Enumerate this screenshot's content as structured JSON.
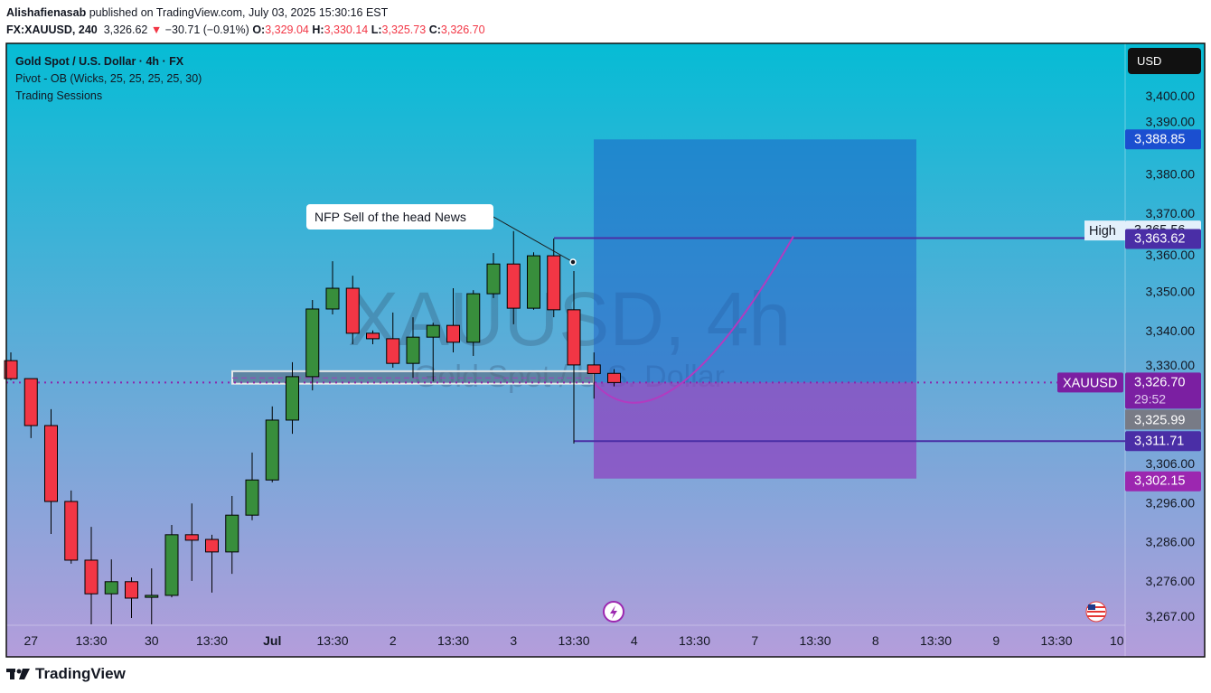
{
  "header": {
    "author": "Alishafienasab",
    "published": "published on TradingView.com, July 03, 2025 15:30:16 EST",
    "symbol": "FX:XAUUSD, 240",
    "last": "3,326.62",
    "change": "−30.71 (−0.91%)",
    "o_label": "O:",
    "o": "3,329.04",
    "h_label": "H:",
    "h": "3,330.14",
    "l_label": "L:",
    "l": "3,325.73",
    "c_label": "C:",
    "c": "3,326.70",
    "down_icon": "triangle-down-icon"
  },
  "legend": {
    "title": "Gold Spot / U.S. Dollar · 4h · FX",
    "indicator1": "Pivot - OB (Wicks, 25, 25, 25, 25, 30)",
    "indicator2": "Trading Sessions"
  },
  "watermark": {
    "line1": "XAUUSD, 4h",
    "line2": "Gold Spot / U.S. Dollar"
  },
  "currency_button": "USD",
  "annotation": "NFP Sell of the head News",
  "colors": {
    "up": "#388e3c",
    "down": "#f23645",
    "bg_top": "#06bcd5",
    "bg_bottom": "#b49ddb",
    "target": "#1e63c8",
    "stop": "#8e44c0",
    "level_line": "#4a2ea6",
    "curve": "#b23bc0"
  },
  "chart_data": {
    "type": "candlestick",
    "ylim": [
      3265,
      3408
    ],
    "y_ticks": [
      "3,400.00",
      "3,390.00",
      "3,380.00",
      "3,370.00",
      "3,360.00",
      "3,350.00",
      "3,340.00",
      "3,330.00",
      "3,306.00",
      "3,296.00",
      "3,286.00",
      "3,276.00",
      "3,267.00"
    ],
    "y_tick_values": [
      3400,
      3390,
      3380,
      3370,
      3360,
      3350,
      3340,
      3330,
      3306,
      3296,
      3286,
      3276,
      3267
    ],
    "x_ticks": [
      "27",
      "13:30",
      "30",
      "13:30",
      "Jul",
      "13:30",
      "2",
      "13:30",
      "3",
      "13:30",
      "4",
      "13:30",
      "7",
      "13:30",
      "8",
      "13:30",
      "9",
      "13:30",
      "10"
    ],
    "x_ticks_bold": [
      "Jul"
    ],
    "candles": [
      [
        3332.3,
        3334.4,
        3327.3,
        3327.7
      ],
      [
        3327.7,
        3327.7,
        3312.5,
        3315.7
      ],
      [
        3315.7,
        3319.9,
        3288.0,
        3296.3
      ],
      [
        3296.3,
        3299.1,
        3280.4,
        3281.3
      ],
      [
        3281.3,
        3289.8,
        3264.9,
        3272.7
      ],
      [
        3272.7,
        3281.5,
        3264.9,
        3275.8
      ],
      [
        3275.8,
        3276.9,
        3266.5,
        3271.6
      ],
      [
        3271.8,
        3279.2,
        3264.9,
        3272.3
      ],
      [
        3272.3,
        3290.3,
        3271.8,
        3287.8
      ],
      [
        3287.8,
        3295.8,
        3276.0,
        3286.4
      ],
      [
        3286.6,
        3287.8,
        3273.0,
        3283.4
      ],
      [
        3283.4,
        3297.7,
        3277.8,
        3292.8
      ],
      [
        3292.8,
        3308.8,
        3291.5,
        3301.8
      ],
      [
        3301.8,
        3320.6,
        3301.2,
        3317.1
      ],
      [
        3317.1,
        3331.9,
        3313.6,
        3328.2
      ],
      [
        3328.2,
        3347.8,
        3324.7,
        3345.5
      ],
      [
        3345.5,
        3357.7,
        3344.1,
        3350.8
      ],
      [
        3350.8,
        3354.0,
        3336.5,
        3339.3
      ],
      [
        3339.3,
        3340.0,
        3336.5,
        3337.9
      ],
      [
        3337.9,
        3344.6,
        3330.5,
        3331.6
      ],
      [
        3331.6,
        3343.4,
        3327.9,
        3338.3
      ],
      [
        3338.3,
        3342.0,
        3327.0,
        3341.3
      ],
      [
        3341.3,
        3350.8,
        3334.4,
        3337.0
      ],
      [
        3337.0,
        3350.3,
        3333.5,
        3349.4
      ],
      [
        3349.4,
        3359.8,
        3348.3,
        3357.0
      ],
      [
        3357.0,
        3365.4,
        3341.6,
        3345.7
      ],
      [
        3345.7,
        3360.0,
        3345.3,
        3359.1
      ],
      [
        3359.1,
        3363.5,
        3343.4,
        3345.3
      ],
      [
        3345.3,
        3355.2,
        3311.1,
        3331.2
      ],
      [
        3331.2,
        3334.4,
        3322.6,
        3329.0
      ],
      [
        3329.04,
        3330.14,
        3325.73,
        3326.7
      ]
    ],
    "ob_zone": [
      3326.4,
      3329.6
    ],
    "position": {
      "entry": 3326.7,
      "target": 3388.85,
      "stop": 3302.15
    },
    "levels": {
      "upper": 3363.62,
      "lower": 3311.71
    },
    "high_value": 3365.56
  },
  "price_labels": {
    "target": "3,388.85",
    "high_label": "High",
    "high": "3,365.56",
    "upper_level": "3,363.62",
    "symbol_tag": "XAUUSD",
    "current": "3,326.70",
    "countdown": "29:52",
    "gray": "3,325.99",
    "lower_level": "3,311.71",
    "stop": "3,302.15"
  },
  "icons": {
    "event1": "lightning-icon",
    "event2": "us-flag-icon"
  },
  "footer": {
    "brand": "TradingView"
  }
}
